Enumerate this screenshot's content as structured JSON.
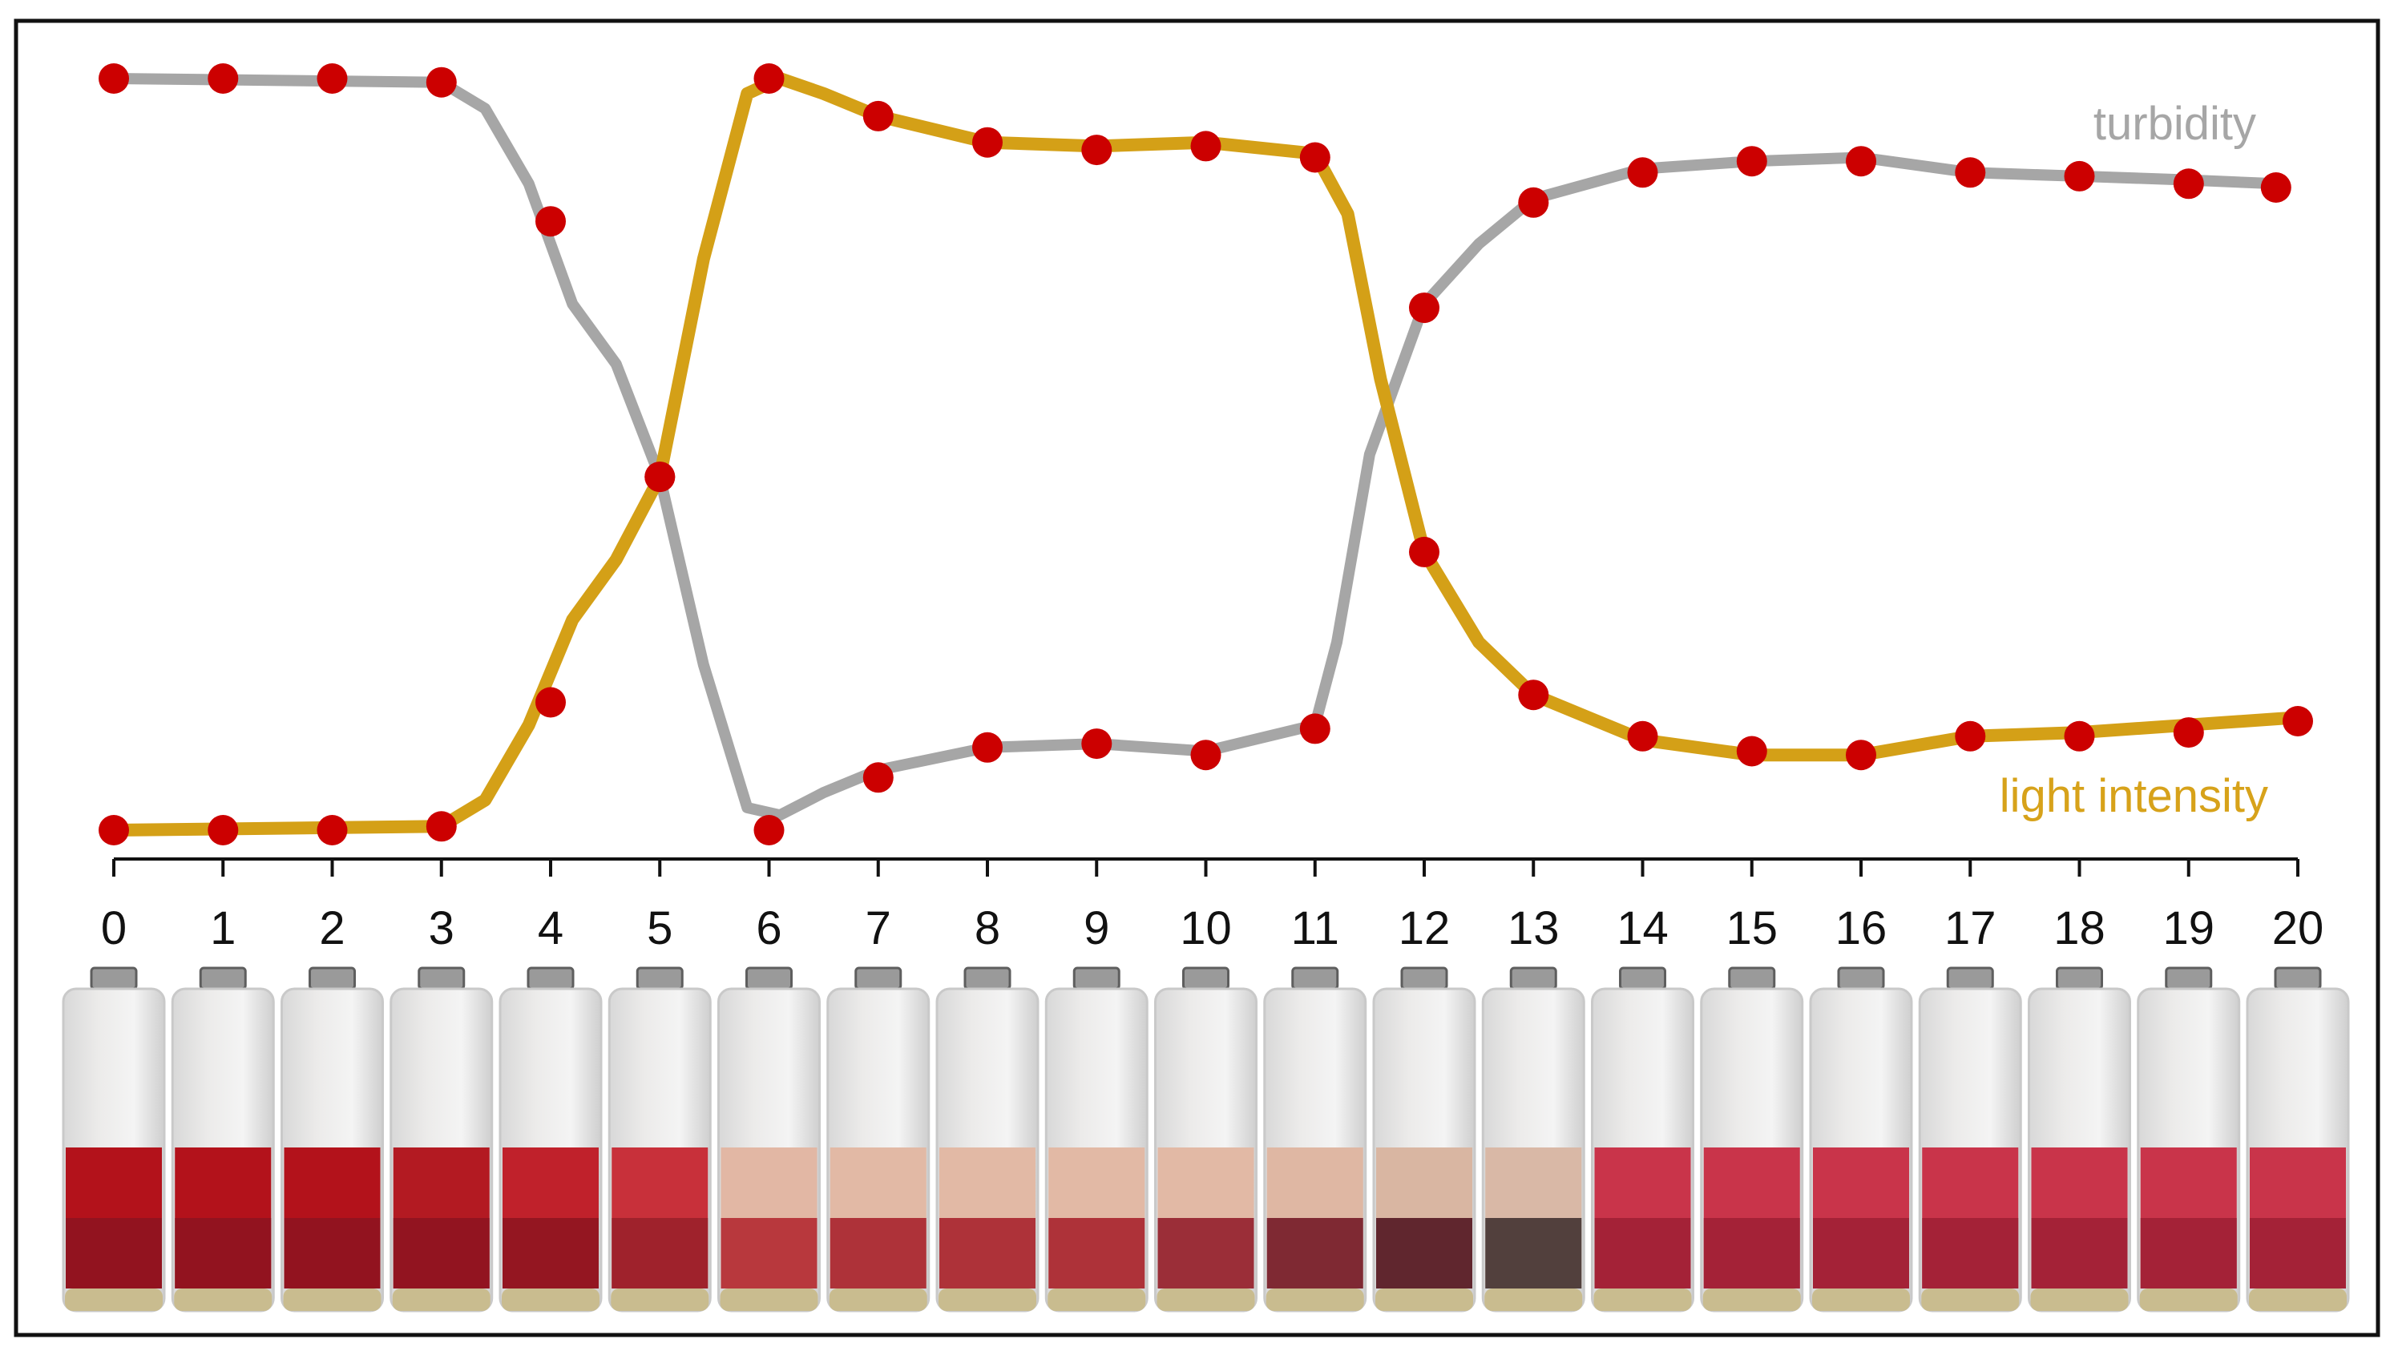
{
  "chart_data": {
    "type": "line",
    "x_ticks": [
      "0",
      "1",
      "2",
      "3",
      "4",
      "5",
      "6",
      "7",
      "8",
      "9",
      "10",
      "11",
      "12",
      "13",
      "14",
      "15",
      "16",
      "17",
      "18",
      "19",
      "20"
    ],
    "xlim": [
      0,
      20
    ],
    "ylim": [
      0,
      1
    ],
    "grid": false,
    "series": [
      {
        "name": "turbidity",
        "color": "#a6a6a6",
        "label_color": "#a6a6a6",
        "curve": [
          [
            0,
            1.0
          ],
          [
            3,
            0.995
          ],
          [
            3.4,
            0.96
          ],
          [
            3.8,
            0.86
          ],
          [
            4.2,
            0.7
          ],
          [
            4.6,
            0.62
          ],
          [
            5.0,
            0.47
          ],
          [
            5.4,
            0.22
          ],
          [
            5.8,
            0.03
          ],
          [
            6.1,
            0.02
          ],
          [
            6.5,
            0.05
          ],
          [
            7.0,
            0.08
          ],
          [
            8,
            0.11
          ],
          [
            9,
            0.115
          ],
          [
            10,
            0.105
          ],
          [
            11,
            0.14
          ],
          [
            11.2,
            0.25
          ],
          [
            11.5,
            0.5
          ],
          [
            11.8,
            0.62
          ],
          [
            12.0,
            0.7
          ],
          [
            12.5,
            0.78
          ],
          [
            13,
            0.84
          ],
          [
            14,
            0.88
          ],
          [
            15,
            0.89
          ],
          [
            16,
            0.895
          ],
          [
            17,
            0.875
          ],
          [
            18,
            0.87
          ],
          [
            19,
            0.865
          ],
          [
            19.8,
            0.86
          ]
        ],
        "markers": [
          [
            0,
            1.0
          ],
          [
            1,
            1.0
          ],
          [
            2,
            1.0
          ],
          [
            3,
            0.995
          ],
          [
            4,
            0.81
          ],
          [
            5,
            0.47
          ],
          [
            6,
            0.0
          ],
          [
            7,
            0.07
          ],
          [
            8,
            0.11
          ],
          [
            9,
            0.115
          ],
          [
            10,
            0.1
          ],
          [
            11,
            0.135
          ],
          [
            12,
            0.695
          ],
          [
            13,
            0.835
          ],
          [
            14,
            0.875
          ],
          [
            15,
            0.89
          ],
          [
            16,
            0.89
          ],
          [
            17,
            0.875
          ],
          [
            18,
            0.87
          ],
          [
            19,
            0.86
          ],
          [
            19.8,
            0.855
          ]
        ]
      },
      {
        "name": "light intensity",
        "color": "#d4a017",
        "label_color": "#d7a21a",
        "curve": [
          [
            0,
            0.0
          ],
          [
            3,
            0.005
          ],
          [
            3.4,
            0.04
          ],
          [
            3.8,
            0.14
          ],
          [
            4.2,
            0.28
          ],
          [
            4.6,
            0.36
          ],
          [
            5.0,
            0.47
          ],
          [
            5.4,
            0.76
          ],
          [
            5.8,
            0.98
          ],
          [
            6.1,
            1.0
          ],
          [
            6.5,
            0.98
          ],
          [
            7,
            0.95
          ],
          [
            8,
            0.915
          ],
          [
            9,
            0.91
          ],
          [
            10,
            0.915
          ],
          [
            11,
            0.9
          ],
          [
            11.3,
            0.82
          ],
          [
            11.6,
            0.6
          ],
          [
            12,
            0.37
          ],
          [
            12.5,
            0.25
          ],
          [
            13,
            0.18
          ],
          [
            14,
            0.12
          ],
          [
            15,
            0.1
          ],
          [
            16,
            0.1
          ],
          [
            17,
            0.125
          ],
          [
            18,
            0.13
          ],
          [
            19,
            0.14
          ],
          [
            20,
            0.15
          ]
        ],
        "markers": [
          [
            0,
            0.0
          ],
          [
            1,
            0.0
          ],
          [
            2,
            0.0
          ],
          [
            3,
            0.005
          ],
          [
            4,
            0.17
          ],
          [
            5,
            0.47
          ],
          [
            6,
            1.0
          ],
          [
            7,
            0.95
          ],
          [
            8,
            0.915
          ],
          [
            9,
            0.905
          ],
          [
            10,
            0.91
          ],
          [
            11,
            0.895
          ],
          [
            12,
            0.37
          ],
          [
            13,
            0.18
          ],
          [
            14,
            0.125
          ],
          [
            15,
            0.105
          ],
          [
            16,
            0.1
          ],
          [
            17,
            0.125
          ],
          [
            18,
            0.125
          ],
          [
            19,
            0.13
          ],
          [
            20,
            0.145
          ]
        ]
      }
    ],
    "marker_color": "#cc0000"
  },
  "bottles": {
    "count": 21,
    "cap_color": "#9a9a9a",
    "glass_color": "#ecebea",
    "stages": [
      {
        "liquid": "#b3121b",
        "lower": "#8c1420"
      },
      {
        "liquid": "#b3121b",
        "lower": "#8c1420"
      },
      {
        "liquid": "#b3121b",
        "lower": "#8c1420"
      },
      {
        "liquid": "#b31a22",
        "lower": "#8c1420"
      },
      {
        "liquid": "#c0212b",
        "lower": "#8c1420"
      },
      {
        "liquid": "#c8303a",
        "lower": "#98202a"
      },
      {
        "liquid": "#e2b7a4",
        "lower": "#b0222c"
      },
      {
        "liquid": "#e2b9a5",
        "lower": "#a41a26"
      },
      {
        "liquid": "#e2b9a5",
        "lower": "#a41a26"
      },
      {
        "liquid": "#e2b9a5",
        "lower": "#a41a26"
      },
      {
        "liquid": "#e2b9a5",
        "lower": "#8e1524"
      },
      {
        "liquid": "#dfb7a3",
        "lower": "#6e1020"
      },
      {
        "liquid": "#d9b6a2",
        "lower": "#4a0d1a"
      },
      {
        "liquid": "#d9b8a6",
        "lower": "#3a2a2a"
      },
      {
        "liquid": "#c9344a",
        "lower": "#9e2034"
      },
      {
        "liquid": "#c9344a",
        "lower": "#9e2034"
      },
      {
        "liquid": "#c9344a",
        "lower": "#9e2034"
      },
      {
        "liquid": "#c9344a",
        "lower": "#9e2034"
      },
      {
        "liquid": "#c9344a",
        "lower": "#9e2034"
      },
      {
        "liquid": "#c9344a",
        "lower": "#9e2034"
      },
      {
        "liquid": "#c9344a",
        "lower": "#9e2034"
      }
    ]
  }
}
